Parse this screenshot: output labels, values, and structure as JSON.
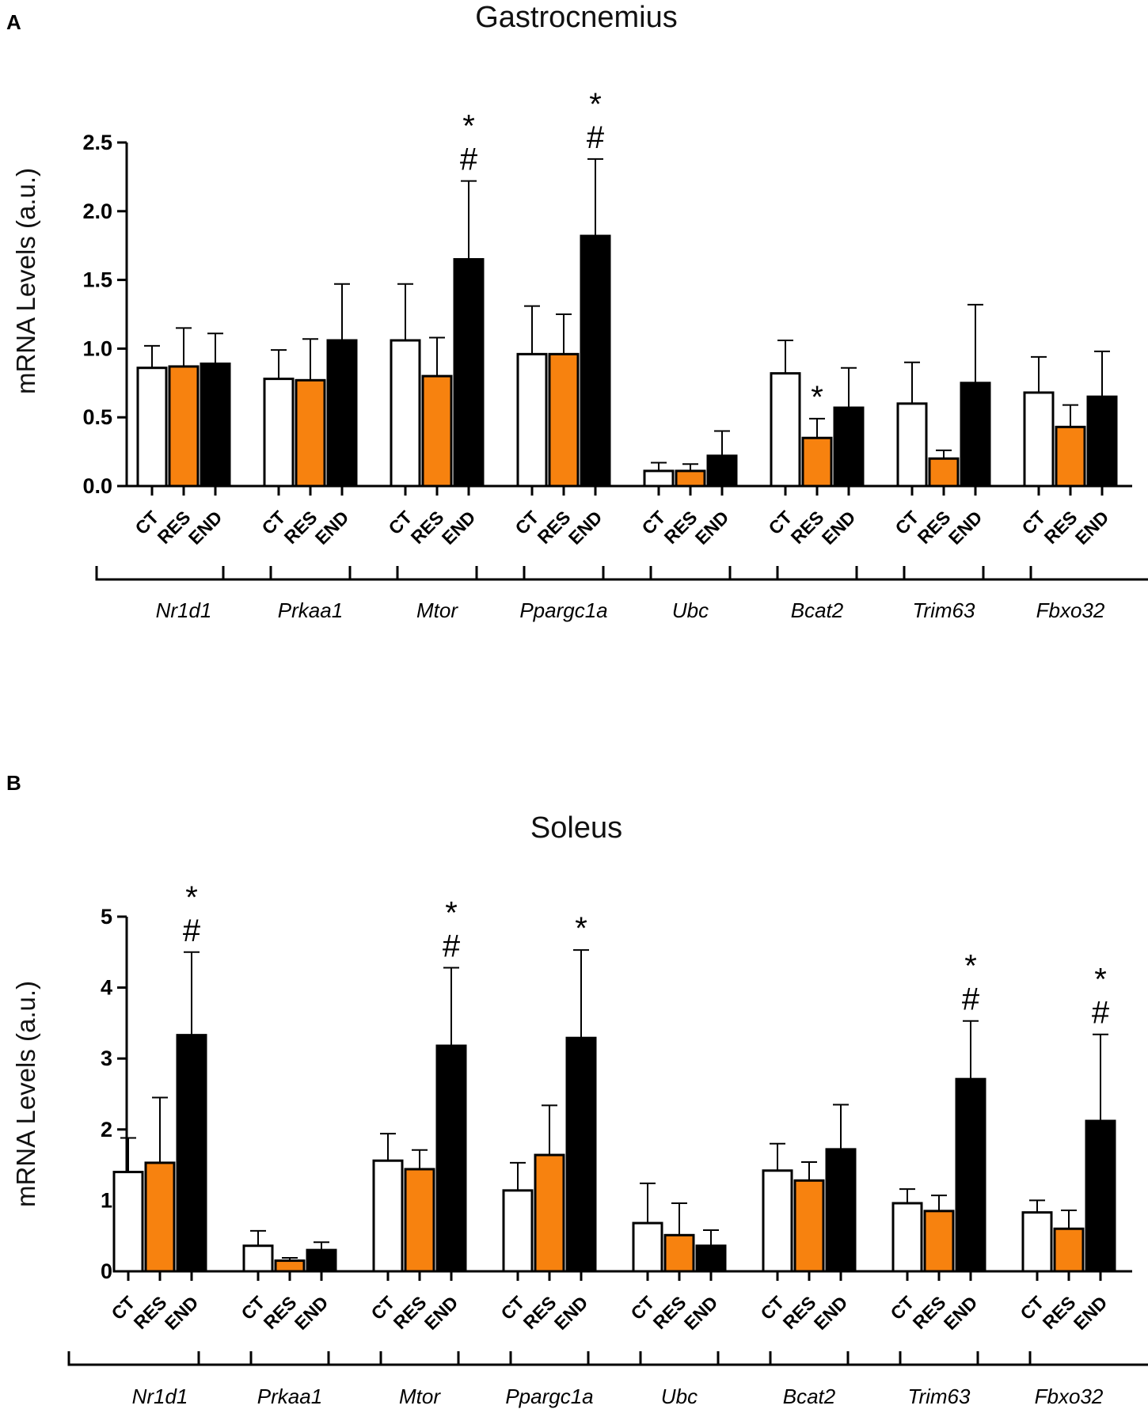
{
  "chart_data": [
    {
      "panel": "A",
      "type": "bar",
      "title": "Gastrocnemius",
      "ylabel": "mRNA Levels (a.u.)",
      "xlabel": "",
      "ylim": [
        0,
        2.5
      ],
      "yticks": [
        0.0,
        0.5,
        1.0,
        1.5,
        2.0,
        2.5
      ],
      "ytick_labels": [
        "0.0",
        "0.5",
        "1.0",
        "1.5",
        "2.0",
        "2.5"
      ],
      "group_labels": [
        "CT",
        "RES",
        "END"
      ],
      "categories": [
        "Nr1d1",
        "Prkaa1",
        "Mtor",
        "Ppargc1a",
        "Ubc",
        "Bcat2",
        "Trim63",
        "Fbxo32"
      ],
      "series": [
        {
          "name": "CT",
          "color": "#ffffff",
          "values": [
            0.86,
            0.78,
            1.06,
            0.96,
            0.11,
            0.82,
            0.6,
            0.68
          ],
          "errors": [
            0.16,
            0.21,
            0.41,
            0.35,
            0.06,
            0.24,
            0.3,
            0.26
          ],
          "annotations": [
            "",
            "",
            "",
            "",
            "",
            "",
            "",
            ""
          ]
        },
        {
          "name": "RES",
          "color": "#f7820f",
          "values": [
            0.87,
            0.77,
            0.8,
            0.96,
            0.11,
            0.35,
            0.2,
            0.43
          ],
          "errors": [
            0.28,
            0.3,
            0.28,
            0.29,
            0.05,
            0.14,
            0.06,
            0.16
          ],
          "annotations": [
            "",
            "",
            "",
            "",
            "",
            "*",
            "",
            ""
          ]
        },
        {
          "name": "END",
          "color": "#000000",
          "values": [
            0.89,
            1.06,
            1.65,
            1.82,
            0.22,
            0.57,
            0.75,
            0.65
          ],
          "errors": [
            0.22,
            0.41,
            0.57,
            0.56,
            0.18,
            0.29,
            0.57,
            0.33
          ],
          "annotations": [
            "",
            "",
            "#|*",
            "#|*",
            "",
            "",
            "",
            ""
          ]
        }
      ]
    },
    {
      "panel": "B",
      "type": "bar",
      "title": "Soleus",
      "ylabel": "mRNA Levels (a.u.)",
      "xlabel": "",
      "ylim": [
        0,
        5
      ],
      "yticks": [
        0,
        1,
        2,
        3,
        4,
        5
      ],
      "ytick_labels": [
        "0",
        "1",
        "2",
        "3",
        "4",
        "5"
      ],
      "group_labels": [
        "CT",
        "RES",
        "END"
      ],
      "categories": [
        "Nr1d1",
        "Prkaa1",
        "Mtor",
        "Ppargc1a",
        "Ubc",
        "Bcat2",
        "Trim63",
        "Fbxo32"
      ],
      "series": [
        {
          "name": "CT",
          "color": "#ffffff",
          "values": [
            1.4,
            0.36,
            1.56,
            1.14,
            0.68,
            1.42,
            0.96,
            0.83
          ],
          "errors": [
            0.48,
            0.21,
            0.38,
            0.39,
            0.56,
            0.38,
            0.2,
            0.17
          ],
          "annotations": [
            "",
            "",
            "",
            "",
            "",
            "",
            "",
            ""
          ]
        },
        {
          "name": "RES",
          "color": "#f7820f",
          "values": [
            1.53,
            0.15,
            1.44,
            1.64,
            0.51,
            1.28,
            0.85,
            0.6
          ],
          "errors": [
            0.92,
            0.04,
            0.27,
            0.7,
            0.45,
            0.26,
            0.22,
            0.26
          ],
          "annotations": [
            "",
            "",
            "",
            "",
            "",
            "",
            "",
            ""
          ]
        },
        {
          "name": "END",
          "color": "#000000",
          "values": [
            3.33,
            0.3,
            3.18,
            3.29,
            0.36,
            1.72,
            2.71,
            2.12
          ],
          "errors": [
            1.17,
            0.11,
            1.1,
            1.24,
            0.22,
            0.63,
            0.82,
            1.22
          ],
          "annotations": [
            "#|*",
            "",
            "#|*",
            "*",
            "",
            "",
            "#|*",
            "#|*"
          ]
        }
      ]
    }
  ]
}
